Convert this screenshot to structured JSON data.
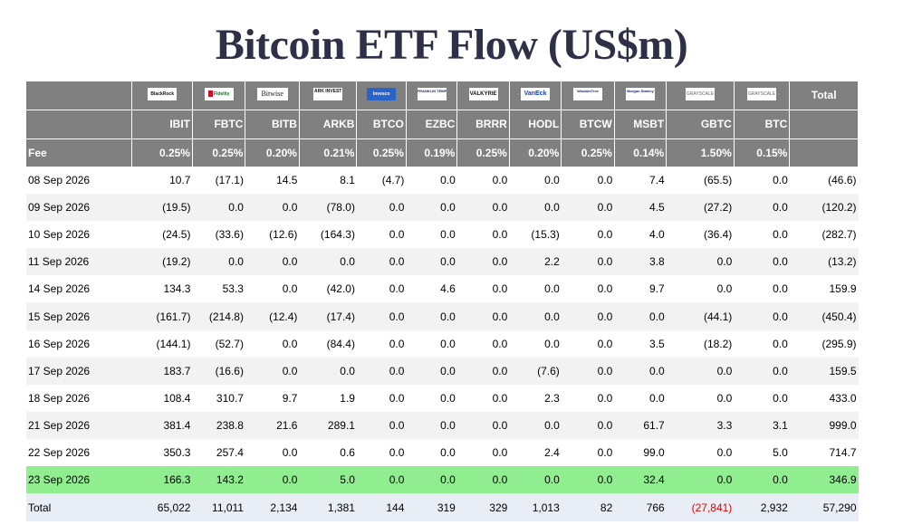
{
  "title": "Bitcoin ETF Flow (US$m)",
  "header": {
    "total_label": "Total",
    "fee_label": "Fee",
    "issuers": [
      {
        "logo_icon": "blackrock-logo-icon",
        "logo_text": "BlackRock",
        "ticker": "IBIT",
        "fee": "0.25%"
      },
      {
        "logo_icon": "fidelity-logo-icon",
        "logo_text": "Fidelity",
        "ticker": "FBTC",
        "fee": "0.25%"
      },
      {
        "logo_icon": "bitwise-logo-icon",
        "logo_text": "Bitwise",
        "ticker": "BITB",
        "fee": "0.20%"
      },
      {
        "logo_icon": "ark-invest-logo-icon",
        "logo_text": "ARK INVEST",
        "ticker": "ARKB",
        "fee": "0.21%"
      },
      {
        "logo_icon": "invesco-logo-icon",
        "logo_text": "Invesco",
        "ticker": "BTCO",
        "fee": "0.25%"
      },
      {
        "logo_icon": "franklin-templeton-logo-icon",
        "logo_text": "FRANKLIN TEMPLETON",
        "ticker": "EZBC",
        "fee": "0.19%"
      },
      {
        "logo_icon": "valkyrie-logo-icon",
        "logo_text": "VALKYRIE",
        "ticker": "BRRR",
        "fee": "0.25%"
      },
      {
        "logo_icon": "vaneck-logo-icon",
        "logo_text": "VanEck",
        "ticker": "HODL",
        "fee": "0.20%"
      },
      {
        "logo_icon": "wisdomtree-logo-icon",
        "logo_text": "WisdomTree",
        "ticker": "BTCW",
        "fee": "0.25%"
      },
      {
        "logo_icon": "morgan-stanley-logo-icon",
        "logo_text": "Morgan Stanley",
        "ticker": "MSBT",
        "fee": "0.14%"
      },
      {
        "logo_icon": "grayscale-logo-icon",
        "logo_text": "GRAYSCALE",
        "ticker": "GBTC",
        "fee": "1.50%"
      },
      {
        "logo_icon": "grayscale-logo-icon",
        "logo_text": "GRAYSCALE",
        "ticker": "BTC",
        "fee": "0.15%"
      }
    ]
  },
  "colors": {
    "header_bg": "#808080",
    "negative": "#e00000",
    "zero": "#c0c0c0",
    "highlight_row": "#90ee90",
    "total_row_bg": "#e8edf6",
    "title": "#2e3048"
  },
  "rows": [
    {
      "date": "08 Sep 2026",
      "values": [
        "10.7",
        "(17.1)",
        "14.5",
        "8.1",
        "(4.7)",
        "0.0",
        "0.0",
        "0.0",
        "0.0",
        "7.4",
        "(65.5)",
        "0.0"
      ],
      "total": "(46.6)"
    },
    {
      "date": "09 Sep 2026",
      "values": [
        "(19.5)",
        "0.0",
        "0.0",
        "(78.0)",
        "0.0",
        "0.0",
        "0.0",
        "0.0",
        "0.0",
        "4.5",
        "(27.2)",
        "0.0"
      ],
      "total": "(120.2)"
    },
    {
      "date": "10 Sep 2026",
      "values": [
        "(24.5)",
        "(33.6)",
        "(12.6)",
        "(164.3)",
        "0.0",
        "0.0",
        "0.0",
        "(15.3)",
        "0.0",
        "4.0",
        "(36.4)",
        "0.0"
      ],
      "total": "(282.7)"
    },
    {
      "date": "11 Sep 2026",
      "values": [
        "(19.2)",
        "0.0",
        "0.0",
        "0.0",
        "0.0",
        "0.0",
        "0.0",
        "2.2",
        "0.0",
        "3.8",
        "0.0",
        "0.0"
      ],
      "total": "(13.2)"
    },
    {
      "date": "14 Sep 2026",
      "values": [
        "134.3",
        "53.3",
        "0.0",
        "(42.0)",
        "0.0",
        "4.6",
        "0.0",
        "0.0",
        "0.0",
        "9.7",
        "0.0",
        "0.0"
      ],
      "total": "159.9"
    },
    {
      "date": "15 Sep 2026",
      "values": [
        "(161.7)",
        "(214.8)",
        "(12.4)",
        "(17.4)",
        "0.0",
        "0.0",
        "0.0",
        "0.0",
        "0.0",
        "0.0",
        "(44.1)",
        "0.0"
      ],
      "total": "(450.4)"
    },
    {
      "date": "16 Sep 2026",
      "values": [
        "(144.1)",
        "(52.7)",
        "0.0",
        "(84.4)",
        "0.0",
        "0.0",
        "0.0",
        "0.0",
        "0.0",
        "3.5",
        "(18.2)",
        "0.0"
      ],
      "total": "(295.9)"
    },
    {
      "date": "17 Sep 2026",
      "values": [
        "183.7",
        "(16.6)",
        "0.0",
        "0.0",
        "0.0",
        "0.0",
        "0.0",
        "(7.6)",
        "0.0",
        "0.0",
        "0.0",
        "0.0"
      ],
      "total": "159.5"
    },
    {
      "date": "18 Sep 2026",
      "values": [
        "108.4",
        "310.7",
        "9.7",
        "1.9",
        "0.0",
        "0.0",
        "0.0",
        "2.3",
        "0.0",
        "0.0",
        "0.0",
        "0.0"
      ],
      "total": "433.0"
    },
    {
      "date": "21 Sep 2026",
      "values": [
        "381.4",
        "238.8",
        "21.6",
        "289.1",
        "0.0",
        "0.0",
        "0.0",
        "0.0",
        "0.0",
        "61.7",
        "3.3",
        "3.1"
      ],
      "total": "999.0"
    },
    {
      "date": "22 Sep 2026",
      "values": [
        "350.3",
        "257.4",
        "0.0",
        "0.6",
        "0.0",
        "0.0",
        "0.0",
        "2.4",
        "0.0",
        "99.0",
        "0.0",
        "5.0"
      ],
      "total": "714.7"
    },
    {
      "date": "23 Sep 2026",
      "values": [
        "166.3",
        "143.2",
        "0.0",
        "5.0",
        "0.0",
        "0.0",
        "0.0",
        "0.0",
        "0.0",
        "32.4",
        "0.0",
        "0.0"
      ],
      "total": "346.9",
      "highlight": true
    }
  ],
  "totals": {
    "label": "Total",
    "values": [
      "65,022",
      "11,011",
      "2,134",
      "1,381",
      "144",
      "319",
      "329",
      "1,013",
      "82",
      "766",
      "(27,841)",
      "2,932"
    ],
    "total": "57,290"
  }
}
